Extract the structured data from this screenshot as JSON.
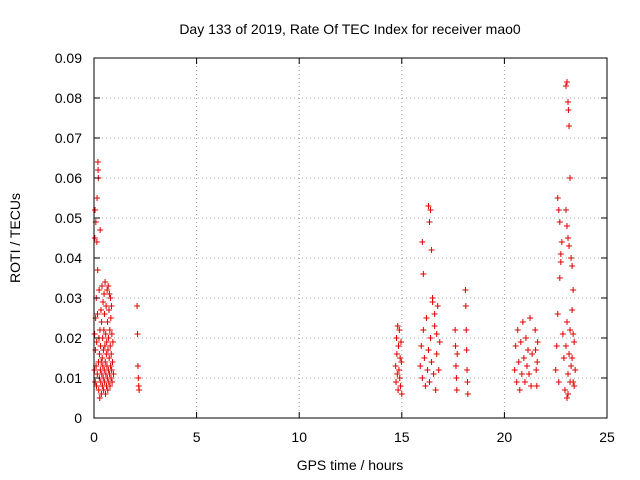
{
  "chart_data": {
    "type": "scatter",
    "title": "Day 133 of 2019, Rate Of TEC Index for receiver mao0",
    "xlabel": "GPS time / hours",
    "ylabel": "ROTI / TECUs",
    "xlim": [
      0,
      25
    ],
    "ylim": [
      0,
      0.09
    ],
    "xticks": [
      0,
      5,
      10,
      15,
      20,
      25
    ],
    "xtick_labels": [
      "0",
      "5",
      "10",
      "15",
      "20",
      "25"
    ],
    "yticks": [
      0,
      0.01,
      0.02,
      0.03,
      0.04,
      0.05,
      0.06,
      0.07,
      0.08,
      0.09
    ],
    "ytick_labels": [
      "0",
      "0.01",
      "0.02",
      "0.03",
      "0.04",
      "0.05",
      "0.06",
      "0.07",
      "0.08",
      "0.09"
    ],
    "grid": true,
    "marker": "+",
    "color": "#e00000",
    "series": [
      {
        "points": [
          [
            0.02,
            0.012
          ],
          [
            0.03,
            0.021
          ],
          [
            0.04,
            0.045
          ],
          [
            0.05,
            0.052
          ],
          [
            0.06,
            0.009
          ],
          [
            0.07,
            0.017
          ],
          [
            0.08,
            0.025
          ],
          [
            0.09,
            0.049
          ],
          [
            0.1,
            0.013
          ],
          [
            0.11,
            0.03
          ],
          [
            0.12,
            0.008
          ],
          [
            0.13,
            0.019
          ],
          [
            0.14,
            0.044
          ],
          [
            0.15,
            0.055
          ],
          [
            0.16,
            0.011
          ],
          [
            0.17,
            0.026
          ],
          [
            0.18,
            0.037
          ],
          [
            0.19,
            0.064
          ],
          [
            0.2,
            0.062
          ],
          [
            0.21,
            0.06
          ],
          [
            0.22,
            0.014
          ],
          [
            0.23,
            0.007
          ],
          [
            0.24,
            0.02
          ],
          [
            0.25,
            0.032
          ],
          [
            0.26,
            0.01
          ],
          [
            0.27,
            0.016
          ],
          [
            0.28,
            0.005
          ],
          [
            0.29,
            0.022
          ],
          [
            0.3,
            0.047
          ],
          [
            0.31,
            0.012
          ],
          [
            0.32,
            0.018
          ],
          [
            0.33,
            0.009
          ],
          [
            0.34,
            0.027
          ],
          [
            0.35,
            0.014
          ],
          [
            0.36,
            0.006
          ],
          [
            0.37,
            0.024
          ],
          [
            0.38,
            0.011
          ],
          [
            0.39,
            0.033
          ],
          [
            0.4,
            0.015
          ],
          [
            0.41,
            0.008
          ],
          [
            0.42,
            0.02
          ],
          [
            0.43,
            0.013
          ],
          [
            0.44,
            0.029
          ],
          [
            0.45,
            0.01
          ],
          [
            0.46,
            0.017
          ],
          [
            0.47,
            0.007
          ],
          [
            0.48,
            0.022
          ],
          [
            0.49,
            0.031
          ],
          [
            0.5,
            0.012
          ],
          [
            0.51,
            0.026
          ],
          [
            0.52,
            0.009
          ],
          [
            0.53,
            0.018
          ],
          [
            0.54,
            0.034
          ],
          [
            0.55,
            0.014
          ],
          [
            0.56,
            0.006
          ],
          [
            0.57,
            0.021
          ],
          [
            0.58,
            0.011
          ],
          [
            0.59,
            0.028
          ],
          [
            0.6,
            0.016
          ],
          [
            0.61,
            0.008
          ],
          [
            0.62,
            0.019
          ],
          [
            0.63,
            0.013
          ],
          [
            0.64,
            0.032
          ],
          [
            0.65,
            0.01
          ],
          [
            0.66,
            0.024
          ],
          [
            0.67,
            0.007
          ],
          [
            0.68,
            0.017
          ],
          [
            0.69,
            0.033
          ],
          [
            0.7,
            0.012
          ],
          [
            0.71,
            0.02
          ],
          [
            0.72,
            0.009
          ],
          [
            0.73,
            0.027
          ],
          [
            0.74,
            0.015
          ],
          [
            0.75,
            0.031
          ],
          [
            0.76,
            0.011
          ],
          [
            0.77,
            0.022
          ],
          [
            0.78,
            0.008
          ],
          [
            0.79,
            0.018
          ],
          [
            0.8,
            0.03
          ],
          [
            0.81,
            0.013
          ],
          [
            0.82,
            0.025
          ],
          [
            0.83,
            0.01
          ],
          [
            0.84,
            0.016
          ],
          [
            0.85,
            0.028
          ],
          [
            0.86,
            0.012
          ],
          [
            0.87,
            0.021
          ],
          [
            0.88,
            0.009
          ],
          [
            0.9,
            0.014
          ],
          [
            0.92,
            0.019
          ],
          [
            0.95,
            0.011
          ],
          [
            2.1,
            0.028
          ],
          [
            2.12,
            0.021
          ],
          [
            2.14,
            0.013
          ],
          [
            2.16,
            0.01
          ],
          [
            2.18,
            0.008
          ],
          [
            2.2,
            0.007
          ],
          [
            14.7,
            0.013
          ],
          [
            14.72,
            0.009
          ],
          [
            14.74,
            0.02
          ],
          [
            14.76,
            0.016
          ],
          [
            14.78,
            0.011
          ],
          [
            14.8,
            0.023
          ],
          [
            14.82,
            0.007
          ],
          [
            14.84,
            0.018
          ],
          [
            14.86,
            0.012
          ],
          [
            14.88,
            0.022
          ],
          [
            14.9,
            0.01
          ],
          [
            14.92,
            0.015
          ],
          [
            14.94,
            0.008
          ],
          [
            14.96,
            0.019
          ],
          [
            14.98,
            0.014
          ],
          [
            15.0,
            0.006
          ],
          [
            15.9,
            0.013
          ],
          [
            15.95,
            0.018
          ],
          [
            16.0,
            0.01
          ],
          [
            16.05,
            0.022
          ],
          [
            16.1,
            0.015
          ],
          [
            16.15,
            0.008
          ],
          [
            16.2,
            0.025
          ],
          [
            16.25,
            0.012
          ],
          [
            16.3,
            0.017
          ],
          [
            16.35,
            0.009
          ],
          [
            16.4,
            0.02
          ],
          [
            16.45,
            0.014
          ],
          [
            16.5,
            0.03
          ],
          [
            16.55,
            0.011
          ],
          [
            16.6,
            0.023
          ],
          [
            16.65,
            0.007
          ],
          [
            16.7,
            0.016
          ],
          [
            16.75,
            0.028
          ],
          [
            16.8,
            0.012
          ],
          [
            16.85,
            0.019
          ],
          [
            16.0,
            0.044
          ],
          [
            16.05,
            0.036
          ],
          [
            16.3,
            0.053
          ],
          [
            16.35,
            0.049
          ],
          [
            16.4,
            0.052
          ],
          [
            16.45,
            0.042
          ],
          [
            16.5,
            0.029
          ],
          [
            16.6,
            0.026
          ],
          [
            16.7,
            0.021
          ],
          [
            17.6,
            0.022
          ],
          [
            17.62,
            0.018
          ],
          [
            17.64,
            0.013
          ],
          [
            17.66,
            0.01
          ],
          [
            17.68,
            0.007
          ],
          [
            17.7,
            0.016
          ],
          [
            18.1,
            0.032
          ],
          [
            18.12,
            0.028
          ],
          [
            18.14,
            0.022
          ],
          [
            18.16,
            0.017
          ],
          [
            18.18,
            0.012
          ],
          [
            18.2,
            0.009
          ],
          [
            18.22,
            0.006
          ],
          [
            20.5,
            0.012
          ],
          [
            20.55,
            0.018
          ],
          [
            20.6,
            0.009
          ],
          [
            20.65,
            0.022
          ],
          [
            20.7,
            0.014
          ],
          [
            20.75,
            0.007
          ],
          [
            20.8,
            0.019
          ],
          [
            20.85,
            0.011
          ],
          [
            20.9,
            0.024
          ],
          [
            20.95,
            0.015
          ],
          [
            21.0,
            0.009
          ],
          [
            21.05,
            0.02
          ],
          [
            21.1,
            0.013
          ],
          [
            21.15,
            0.017
          ],
          [
            21.2,
            0.011
          ],
          [
            21.25,
            0.025
          ],
          [
            21.3,
            0.008
          ],
          [
            21.35,
            0.016
          ],
          [
            21.5,
            0.022
          ],
          [
            21.52,
            0.017
          ],
          [
            21.55,
            0.012
          ],
          [
            21.58,
            0.008
          ],
          [
            21.6,
            0.014
          ],
          [
            21.62,
            0.019
          ],
          [
            22.5,
            0.012
          ],
          [
            22.55,
            0.018
          ],
          [
            22.6,
            0.026
          ],
          [
            22.65,
            0.009
          ],
          [
            22.7,
            0.035
          ],
          [
            22.75,
            0.039
          ],
          [
            22.8,
            0.044
          ],
          [
            22.85,
            0.021
          ],
          [
            22.9,
            0.015
          ],
          [
            22.95,
            0.007
          ],
          [
            22.6,
            0.055
          ],
          [
            22.65,
            0.052
          ],
          [
            22.7,
            0.049
          ],
          [
            22.75,
            0.041
          ],
          [
            23.0,
            0.083
          ],
          [
            23.05,
            0.084
          ],
          [
            23.1,
            0.079
          ],
          [
            23.12,
            0.077
          ],
          [
            23.15,
            0.073
          ],
          [
            23.0,
            0.052
          ],
          [
            23.05,
            0.048
          ],
          [
            23.1,
            0.045
          ],
          [
            23.15,
            0.043
          ],
          [
            23.2,
            0.06
          ],
          [
            23.25,
            0.04
          ],
          [
            23.3,
            0.038
          ],
          [
            23.35,
            0.032
          ],
          [
            23.0,
            0.018
          ],
          [
            23.05,
            0.024
          ],
          [
            23.1,
            0.011
          ],
          [
            23.15,
            0.016
          ],
          [
            23.2,
            0.022
          ],
          [
            23.25,
            0.013
          ],
          [
            23.3,
            0.027
          ],
          [
            23.35,
            0.009
          ],
          [
            23.4,
            0.019
          ],
          [
            23.45,
            0.012
          ],
          [
            23.05,
            0.005
          ],
          [
            23.1,
            0.006
          ],
          [
            23.2,
            0.009
          ],
          [
            23.3,
            0.015
          ],
          [
            23.35,
            0.021
          ],
          [
            23.4,
            0.008
          ]
        ]
      }
    ]
  }
}
